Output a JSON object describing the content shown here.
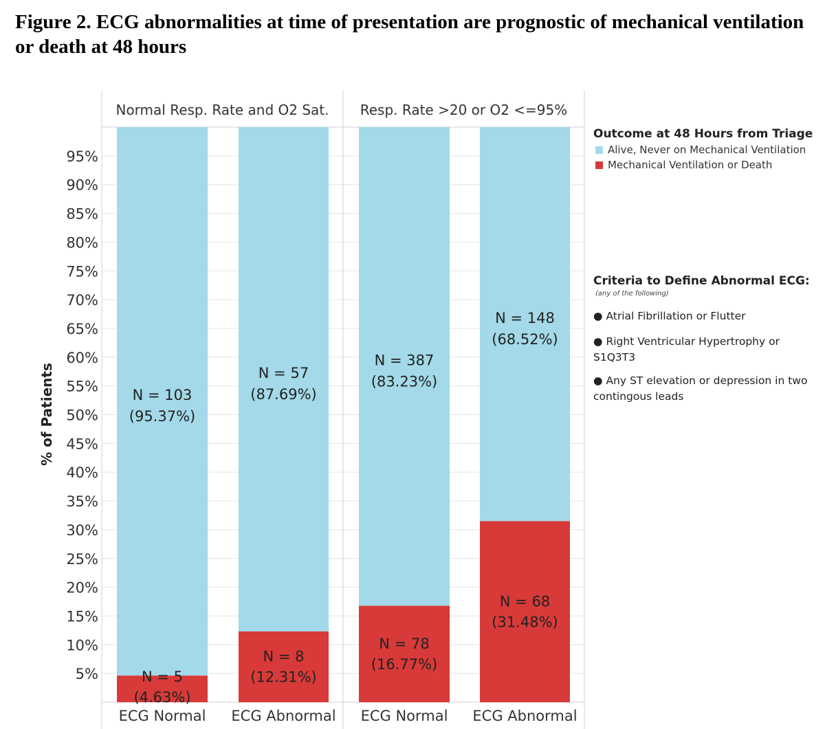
{
  "figure_title": "Figure 2. ECG abnormalities at time of presentation are prognostic of mechanical ventilation or death at 48 hours",
  "colors": {
    "alive": "#a3d9e8",
    "death": "#d73a38",
    "grid": "#e6e6e6",
    "border": "#d0d0d0"
  },
  "legend": {
    "title": "Outcome at 48 Hours from Triage",
    "items": [
      {
        "label": "Alive, Never on Mechanical Ventilation",
        "color": "#a3d9e8"
      },
      {
        "label": "Mechanical Ventilation or Death",
        "color": "#d73a38"
      }
    ]
  },
  "criteria": {
    "title": "Criteria to Define Abnormal ECG:",
    "subtitle": "(any of the following)",
    "items": [
      "● Atrial Fibrillation or Flutter",
      "● Right Ventricular Hypertrophy or S1Q3T3",
      "● Any ST elevation or depression in two contingous leads"
    ]
  },
  "chart_data": {
    "type": "bar",
    "stacked": true,
    "ylabel": "% of Patients",
    "ylim": [
      0,
      100
    ],
    "yticks": [
      5,
      10,
      15,
      20,
      25,
      30,
      35,
      40,
      45,
      50,
      55,
      60,
      65,
      70,
      75,
      80,
      85,
      90,
      95
    ],
    "ytick_labels": [
      "5%",
      "10%",
      "15%",
      "20%",
      "25%",
      "30%",
      "35%",
      "40%",
      "45%",
      "50%",
      "55%",
      "60%",
      "65%",
      "70%",
      "75%",
      "80%",
      "85%",
      "90%",
      "95%"
    ],
    "panels": [
      {
        "title": "Normal Resp. Rate and O2 Sat.",
        "bars": [
          {
            "category": "ECG Normal",
            "death": {
              "pct": 4.63,
              "n_label": "N = 5",
              "pct_label": "(4.63%)"
            },
            "alive": {
              "pct": 95.37,
              "n_label": "N = 103",
              "pct_label": "(95.37%)"
            }
          },
          {
            "category": "ECG Abnormal",
            "death": {
              "pct": 12.31,
              "n_label": "N = 8",
              "pct_label": "(12.31%)"
            },
            "alive": {
              "pct": 87.69,
              "n_label": "N = 57",
              "pct_label": "(87.69%)"
            }
          }
        ]
      },
      {
        "title": "Resp. Rate >20 or O2 <=95%",
        "bars": [
          {
            "category": "ECG Normal",
            "death": {
              "pct": 16.77,
              "n_label": "N = 78",
              "pct_label": "(16.77%)"
            },
            "alive": {
              "pct": 83.23,
              "n_label": "N = 387",
              "pct_label": "(83.23%)"
            }
          },
          {
            "category": "ECG Abnormal",
            "death": {
              "pct": 31.48,
              "n_label": "N = 68",
              "pct_label": "(31.48%)"
            },
            "alive": {
              "pct": 68.52,
              "n_label": "N = 148",
              "pct_label": "(68.52%)"
            }
          }
        ]
      }
    ]
  }
}
